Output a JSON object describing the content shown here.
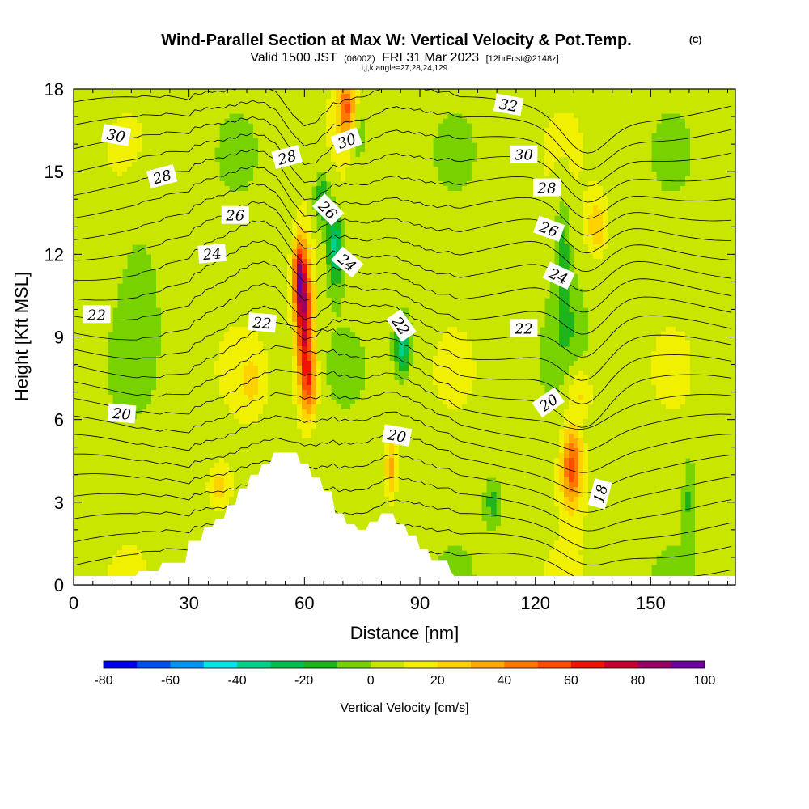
{
  "chart_data": {
    "type": "heatmap",
    "title_main": "Wind-Parallel Section at Max W: Vertical Velocity & Pot.Temp.",
    "title_mark": "(C)",
    "subtitle_valid": "Valid 1500 JST",
    "subtitle_z": "(0600Z)",
    "subtitle_date": "FRI 31 Mar 2023",
    "subtitle_fcst": "[12hrFcst@2148z]",
    "subtitle_ijk": "i,j,k,angle=27,28,24,129",
    "xlabel": "Distance [nm]",
    "ylabel": "Height [Kft MSL]",
    "xlim": [
      0,
      172
    ],
    "ylim": [
      0,
      18
    ],
    "x_ticks": [
      "0",
      "30",
      "60",
      "90",
      "120",
      "150"
    ],
    "y_ticks": [
      "0",
      "3",
      "6",
      "9",
      "12",
      "15",
      "18"
    ],
    "colorbar": {
      "label": "Vertical Velocity [cm/s]",
      "tick_labels": [
        "-80",
        "-60",
        "-40",
        "-20",
        "0",
        "20",
        "40",
        "60",
        "80",
        "100"
      ],
      "colors": [
        "#0000f0",
        "#0050f0",
        "#0096f0",
        "#00e6e6",
        "#00d28c",
        "#00be50",
        "#1eb41e",
        "#78d200",
        "#c8e600",
        "#f0f000",
        "#ffd200",
        "#ffaa00",
        "#ff7800",
        "#ff4b00",
        "#f01400",
        "#c80032",
        "#960064",
        "#6e00a0"
      ],
      "vmin": -80,
      "vmax": 100
    },
    "theta_contour_labels": [
      {
        "text": "30",
        "x": 11,
        "y": 16.3,
        "angle": 10
      },
      {
        "text": "28",
        "x": 23,
        "y": 14.8,
        "angle": -15
      },
      {
        "text": "26",
        "x": 42,
        "y": 13.4,
        "angle": 0
      },
      {
        "text": "24",
        "x": 36,
        "y": 12.0,
        "angle": -5
      },
      {
        "text": "22",
        "x": 6,
        "y": 9.8,
        "angle": 0
      },
      {
        "text": "20",
        "x": 12.5,
        "y": 6.2,
        "angle": 5
      },
      {
        "text": "28",
        "x": 55.5,
        "y": 15.5,
        "angle": -15
      },
      {
        "text": "30",
        "x": 71,
        "y": 16.1,
        "angle": -20
      },
      {
        "text": "26",
        "x": 66,
        "y": 13.6,
        "angle": 45
      },
      {
        "text": "24",
        "x": 71,
        "y": 11.7,
        "angle": 40
      },
      {
        "text": "22",
        "x": 49,
        "y": 9.5,
        "angle": 5
      },
      {
        "text": "22",
        "x": 85,
        "y": 9.4,
        "angle": 55
      },
      {
        "text": "20",
        "x": 84,
        "y": 5.4,
        "angle": 10
      },
      {
        "text": "32",
        "x": 113,
        "y": 17.4,
        "angle": 10
      },
      {
        "text": "30",
        "x": 117,
        "y": 15.6,
        "angle": 0
      },
      {
        "text": "28",
        "x": 123,
        "y": 14.4,
        "angle": 0
      },
      {
        "text": "26",
        "x": 123.5,
        "y": 12.9,
        "angle": 20
      },
      {
        "text": "24",
        "x": 126,
        "y": 11.2,
        "angle": 25
      },
      {
        "text": "22",
        "x": 117,
        "y": 9.3,
        "angle": 0
      },
      {
        "text": "20",
        "x": 123.5,
        "y": 6.6,
        "angle": -35
      },
      {
        "text": "18",
        "x": 137,
        "y": 3.3,
        "angle": -75
      }
    ],
    "terrain_profile": [
      [
        16,
        0.3
      ],
      [
        17,
        0.5
      ],
      [
        22,
        0.5
      ],
      [
        23,
        0.8
      ],
      [
        29,
        0.8
      ],
      [
        30,
        1.6
      ],
      [
        33,
        1.6
      ],
      [
        34,
        2.1
      ],
      [
        36,
        2.1
      ],
      [
        37,
        2.4
      ],
      [
        39,
        2.4
      ],
      [
        40,
        2.9
      ],
      [
        42,
        2.9
      ],
      [
        43,
        3.5
      ],
      [
        45,
        3.5
      ],
      [
        46,
        4.0
      ],
      [
        48,
        4.0
      ],
      [
        49,
        4.4
      ],
      [
        51,
        4.4
      ],
      [
        52,
        4.8
      ],
      [
        58,
        4.8
      ],
      [
        59,
        4.4
      ],
      [
        61,
        4.4
      ],
      [
        62,
        3.9
      ],
      [
        64,
        3.9
      ],
      [
        65,
        3.4
      ],
      [
        67,
        3.4
      ],
      [
        68,
        2.6
      ],
      [
        70,
        2.6
      ],
      [
        71,
        2.2
      ],
      [
        73,
        2.2
      ],
      [
        74,
        2.0
      ],
      [
        76,
        2.0
      ],
      [
        77,
        2.3
      ],
      [
        79,
        2.3
      ],
      [
        80,
        2.6
      ],
      [
        83,
        2.6
      ],
      [
        84,
        2.2
      ],
      [
        86,
        2.2
      ],
      [
        87,
        1.8
      ],
      [
        89,
        1.8
      ],
      [
        90,
        1.3
      ],
      [
        92,
        1.3
      ],
      [
        93,
        0.9
      ],
      [
        97,
        0.9
      ],
      [
        98,
        0.5
      ],
      [
        99,
        0.3
      ]
    ],
    "velocity_features": [
      {
        "cx": 60,
        "cy": 9.5,
        "rx": 2.3,
        "ry": 2.5,
        "w": 70
      },
      {
        "cx": 58.5,
        "cy": 11.2,
        "rx": 1.5,
        "ry": 1.3,
        "w": 55
      },
      {
        "cx": 61.5,
        "cy": 7.2,
        "rx": 2.0,
        "ry": 1.2,
        "w": 35
      },
      {
        "cx": 71,
        "cy": 17.3,
        "rx": 2.5,
        "ry": 1.0,
        "w": 45
      },
      {
        "cx": 129.5,
        "cy": 4.3,
        "rx": 2.8,
        "ry": 1.5,
        "w": 50
      },
      {
        "cx": 131.5,
        "cy": 7.0,
        "rx": 3.5,
        "ry": 1.0,
        "w": 20
      },
      {
        "cx": 136,
        "cy": 13.0,
        "rx": 2.5,
        "ry": 1.0,
        "w": 22
      },
      {
        "cx": 82.5,
        "cy": 4.3,
        "rx": 1.5,
        "ry": 1.0,
        "w": 30
      },
      {
        "cx": 38,
        "cy": 3.5,
        "rx": 3.0,
        "ry": 0.8,
        "w": 20
      },
      {
        "cx": 46,
        "cy": 7.4,
        "rx": 3.0,
        "ry": 1.0,
        "w": 15
      },
      {
        "cx": 68,
        "cy": 12.3,
        "rx": 2.0,
        "ry": 1.3,
        "w": -40
      },
      {
        "cx": 64.5,
        "cy": 14.0,
        "rx": 2.0,
        "ry": 1.0,
        "w": -30
      },
      {
        "cx": 85.5,
        "cy": 8.7,
        "rx": 2.0,
        "ry": 1.0,
        "w": -40
      },
      {
        "cx": 74,
        "cy": 16.5,
        "rx": 2.0,
        "ry": 1.5,
        "w": -18
      },
      {
        "cx": 127,
        "cy": 12.5,
        "rx": 2.0,
        "ry": 1.8,
        "w": -20
      },
      {
        "cx": 128,
        "cy": 9.5,
        "rx": 4.0,
        "ry": 2.0,
        "w": -12
      },
      {
        "cx": 109,
        "cy": 3.0,
        "rx": 2.0,
        "ry": 0.8,
        "w": -20
      },
      {
        "cx": 160,
        "cy": 3.2,
        "rx": 1.5,
        "ry": 1.5,
        "w": -15
      },
      {
        "cx": 17,
        "cy": 11.0,
        "rx": 5.0,
        "ry": 3.0,
        "w": -8
      }
    ]
  }
}
